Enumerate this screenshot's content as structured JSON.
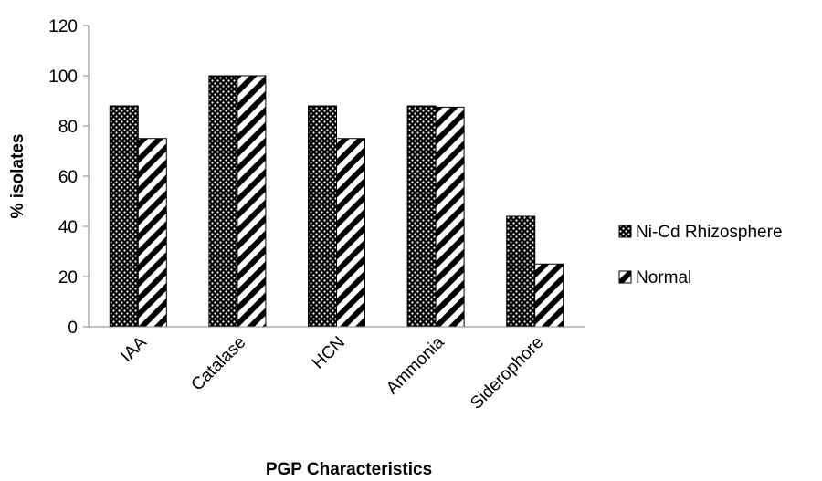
{
  "chart_data": {
    "type": "bar",
    "title": "",
    "xlabel": "PGP Characteristics",
    "ylabel": "% isolates",
    "categories": [
      "IAA",
      "Catalase",
      "HCN",
      "Ammonia",
      "Siderophore"
    ],
    "series": [
      {
        "name": "Ni-Cd Rhizosphere",
        "values": [
          88,
          100,
          88,
          88,
          44
        ],
        "pattern": "dots"
      },
      {
        "name": "Normal",
        "values": [
          75,
          100,
          75,
          87.5,
          25
        ],
        "pattern": "diagonal-stripes"
      }
    ],
    "ylim": [
      0,
      120
    ],
    "yticks": [
      0,
      20,
      40,
      60,
      80,
      100,
      120
    ],
    "grid": false,
    "legend_position": "right",
    "colors": {
      "bar_fill": "#000000",
      "bar_background": "#ffffff"
    }
  }
}
